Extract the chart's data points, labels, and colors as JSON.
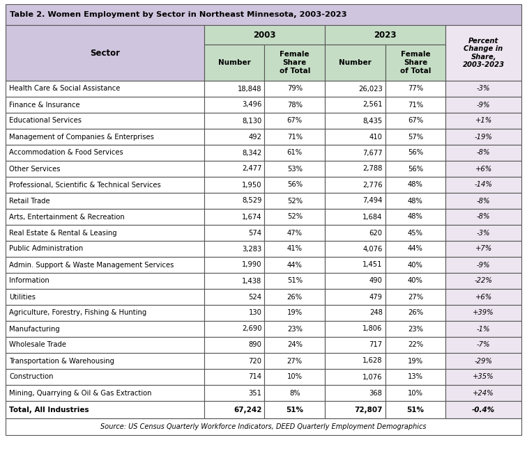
{
  "title": "Table 2. Women Employment by Sector in Northeast Minnesota, 2003-2023",
  "source": "Source: US Census Quarterly Workforce Indicators, DEED Quarterly Employment Demographics",
  "rows": [
    [
      "Health Care & Social Assistance",
      "18,848",
      "79%",
      "26,023",
      "77%",
      "-3%"
    ],
    [
      "Finance & Insurance",
      "3,496",
      "78%",
      "2,561",
      "71%",
      "-9%"
    ],
    [
      "Educational Services",
      "8,130",
      "67%",
      "8,435",
      "67%",
      "+1%"
    ],
    [
      "Management of Companies & Enterprises",
      "492",
      "71%",
      "410",
      "57%",
      "-19%"
    ],
    [
      "Accommodation & Food Services",
      "8,342",
      "61%",
      "7,677",
      "56%",
      "-8%"
    ],
    [
      "Other Services",
      "2,477",
      "53%",
      "2,788",
      "56%",
      "+6%"
    ],
    [
      "Professional, Scientific & Technical Services",
      "1,950",
      "56%",
      "2,776",
      "48%",
      "-14%"
    ],
    [
      "Retail Trade",
      "8,529",
      "52%",
      "7,494",
      "48%",
      "-8%"
    ],
    [
      "Arts, Entertainment & Recreation",
      "1,674",
      "52%",
      "1,684",
      "48%",
      "-8%"
    ],
    [
      "Real Estate & Rental & Leasing",
      "574",
      "47%",
      "620",
      "45%",
      "-3%"
    ],
    [
      "Public Administration",
      "3,283",
      "41%",
      "4,076",
      "44%",
      "+7%"
    ],
    [
      "Admin. Support & Waste Management Services",
      "1,990",
      "44%",
      "1,451",
      "40%",
      "-9%"
    ],
    [
      "Information",
      "1,438",
      "51%",
      "490",
      "40%",
      "-22%"
    ],
    [
      "Utilities",
      "524",
      "26%",
      "479",
      "27%",
      "+6%"
    ],
    [
      "Agriculture, Forestry, Fishing & Hunting",
      "130",
      "19%",
      "248",
      "26%",
      "+39%"
    ],
    [
      "Manufacturing",
      "2,690",
      "23%",
      "1,806",
      "23%",
      "-1%"
    ],
    [
      "Wholesale Trade",
      "890",
      "24%",
      "717",
      "22%",
      "-7%"
    ],
    [
      "Transportation & Warehousing",
      "720",
      "27%",
      "1,628",
      "19%",
      "-29%"
    ],
    [
      "Construction",
      "714",
      "10%",
      "1,076",
      "13%",
      "+35%"
    ],
    [
      "Mining, Quarrying & Oil & Gas Extraction",
      "351",
      "8%",
      "368",
      "10%",
      "+24%"
    ]
  ],
  "total_row": [
    "Total, All Industries",
    "67,242",
    "51%",
    "72,807",
    "51%",
    "-0.4%"
  ],
  "header_bg": "#cfc5de",
  "subheader_bg": "#c5ddc5",
  "last_col_bg": "#ede5f0",
  "row_bg": "#ffffff",
  "border_color": "#555555",
  "title_bg": "#cfc5de",
  "fig_w": 7.56,
  "fig_h": 6.45,
  "dpi": 100
}
